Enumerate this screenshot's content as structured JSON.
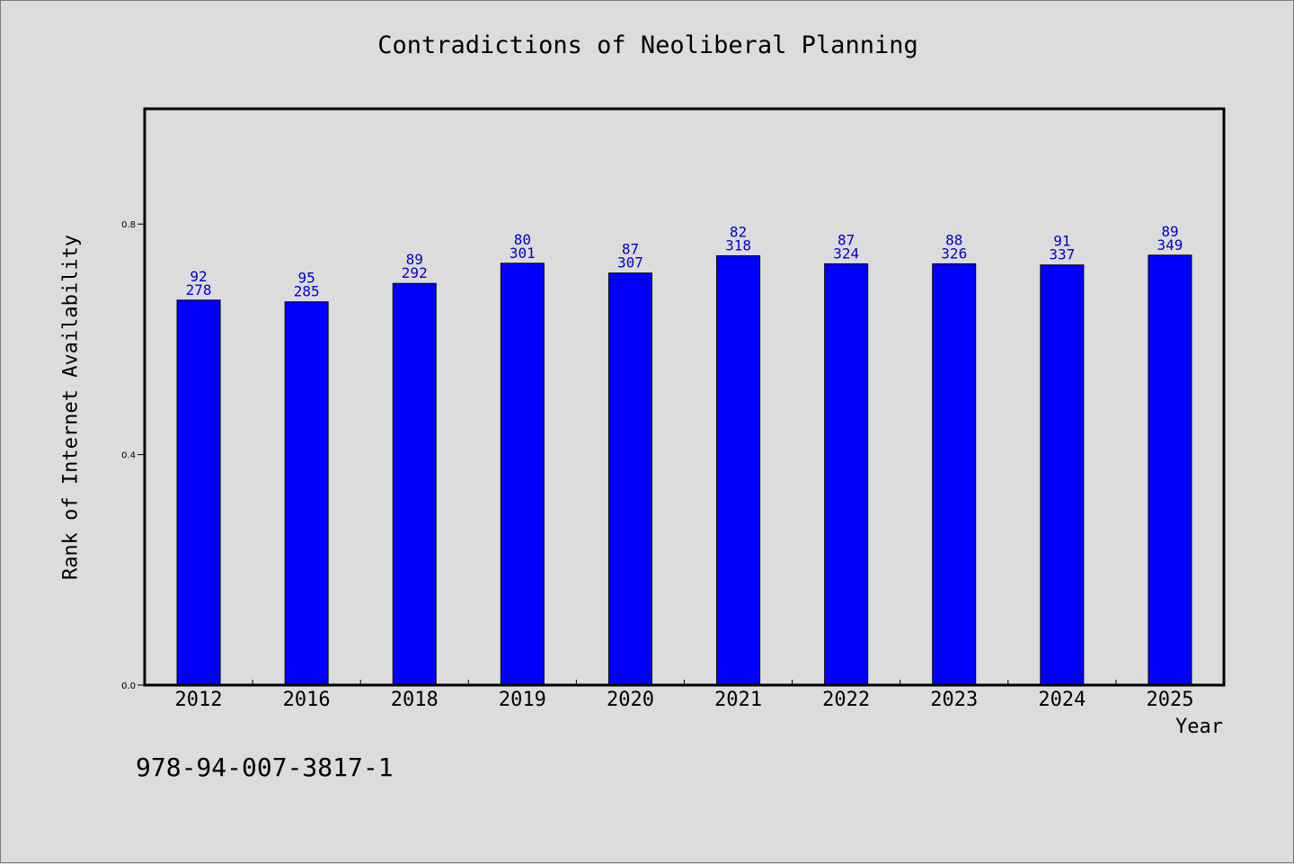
{
  "chart_data": {
    "type": "bar",
    "title": "Contradictions of Neoliberal Planning",
    "xlabel": "Year",
    "ylabel": "Rank of Internet Availability",
    "categories": [
      "2012",
      "2016",
      "2018",
      "2019",
      "2020",
      "2021",
      "2022",
      "2023",
      "2024",
      "2025"
    ],
    "values": [
      0.668,
      0.665,
      0.697,
      0.732,
      0.715,
      0.745,
      0.731,
      0.731,
      0.729,
      0.746
    ],
    "labels_top": [
      "92",
      "95",
      "89",
      "80",
      "87",
      "82",
      "87",
      "88",
      "91",
      "89"
    ],
    "labels_bottom": [
      "278",
      "285",
      "292",
      "301",
      "307",
      "318",
      "324",
      "326",
      "337",
      "349"
    ],
    "ylim": [
      0,
      1.0
    ],
    "yticks": [
      0.0,
      0.4,
      0.8
    ],
    "ytick_labels": [
      "0.0",
      "0.4",
      "0.8"
    ],
    "grid": false,
    "bar_color": "#0000ff",
    "label_color": "#0000cc"
  },
  "footnote": "978-94-007-3817-1"
}
